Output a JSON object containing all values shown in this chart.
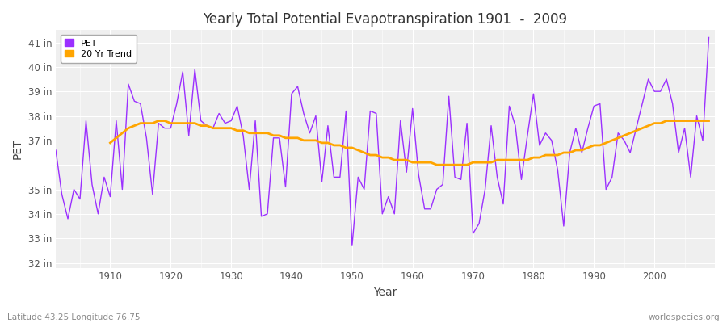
{
  "title": "Yearly Total Potential Evapotranspiration 1901  -  2009",
  "xlabel": "Year",
  "ylabel": "PET",
  "subtitle_left": "Latitude 43.25 Longitude 76.75",
  "subtitle_right": "worldspecies.org",
  "ylim": [
    31.8,
    41.5
  ],
  "yticks": [
    32,
    33,
    34,
    35,
    36,
    37,
    38,
    39,
    40,
    41
  ],
  "ytick_labels": [
    "32 in",
    "33 in",
    "34 in",
    "35 in",
    "",
    "37 in",
    "38 in",
    "39 in",
    "40 in",
    "41 in"
  ],
  "xlim": [
    1901,
    2010
  ],
  "xticks": [
    1910,
    1920,
    1930,
    1940,
    1950,
    1960,
    1970,
    1980,
    1990,
    2000
  ],
  "pet_color": "#9B30FF",
  "trend_color": "#FFA500",
  "background_color": "#FFFFFF",
  "plot_bg_color": "#EFEFEF",
  "pet_linewidth": 1.0,
  "trend_linewidth": 2.0,
  "years": [
    1901,
    1902,
    1903,
    1904,
    1905,
    1906,
    1907,
    1908,
    1909,
    1910,
    1911,
    1912,
    1913,
    1914,
    1915,
    1916,
    1917,
    1918,
    1919,
    1920,
    1921,
    1922,
    1923,
    1924,
    1925,
    1926,
    1927,
    1928,
    1929,
    1930,
    1931,
    1932,
    1933,
    1934,
    1935,
    1936,
    1937,
    1938,
    1939,
    1940,
    1941,
    1942,
    1943,
    1944,
    1945,
    1946,
    1947,
    1948,
    1949,
    1950,
    1951,
    1952,
    1953,
    1954,
    1955,
    1956,
    1957,
    1958,
    1959,
    1960,
    1961,
    1962,
    1963,
    1964,
    1965,
    1966,
    1967,
    1968,
    1969,
    1970,
    1971,
    1972,
    1973,
    1974,
    1975,
    1976,
    1977,
    1978,
    1979,
    1980,
    1981,
    1982,
    1983,
    1984,
    1985,
    1986,
    1987,
    1988,
    1989,
    1990,
    1991,
    1992,
    1993,
    1994,
    1995,
    1996,
    1997,
    1998,
    1999,
    2000,
    2001,
    2002,
    2003,
    2004,
    2005,
    2006,
    2007,
    2008,
    2009
  ],
  "pet_values": [
    36.6,
    34.8,
    33.8,
    35.0,
    34.6,
    37.8,
    35.2,
    34.0,
    35.5,
    34.7,
    37.8,
    35.0,
    39.3,
    38.6,
    38.5,
    37.1,
    34.8,
    37.7,
    37.5,
    37.5,
    38.5,
    39.8,
    37.2,
    39.9,
    37.8,
    37.6,
    37.5,
    38.1,
    37.7,
    37.8,
    38.4,
    37.2,
    35.0,
    37.8,
    33.9,
    34.0,
    37.1,
    37.1,
    35.1,
    38.9,
    39.2,
    38.1,
    37.3,
    38.0,
    35.3,
    37.6,
    35.5,
    35.5,
    38.2,
    32.7,
    35.5,
    35.0,
    38.2,
    38.1,
    34.0,
    34.7,
    34.0,
    37.8,
    35.7,
    38.3,
    35.6,
    34.2,
    34.2,
    35.0,
    35.2,
    38.8,
    35.5,
    35.4,
    37.7,
    33.2,
    33.6,
    35.0,
    37.6,
    35.5,
    34.4,
    38.4,
    37.6,
    35.4,
    37.2,
    38.9,
    36.8,
    37.3,
    37.0,
    35.8,
    33.5,
    36.5,
    37.5,
    36.5,
    37.5,
    38.4,
    38.5,
    35.0,
    35.5,
    37.3,
    37.0,
    36.5,
    37.5,
    38.5,
    39.5,
    39.0,
    39.0,
    39.5,
    38.5,
    36.5,
    37.5,
    35.5,
    38.0,
    37.0,
    41.2
  ],
  "trend_years": [
    1910,
    1911,
    1912,
    1913,
    1914,
    1915,
    1916,
    1917,
    1918,
    1919,
    1920,
    1921,
    1922,
    1923,
    1924,
    1925,
    1926,
    1927,
    1928,
    1929,
    1930,
    1931,
    1932,
    1933,
    1934,
    1935,
    1936,
    1937,
    1938,
    1939,
    1940,
    1941,
    1942,
    1943,
    1944,
    1945,
    1946,
    1947,
    1948,
    1949,
    1950,
    1951,
    1952,
    1953,
    1954,
    1955,
    1956,
    1957,
    1958,
    1959,
    1960,
    1961,
    1962,
    1963,
    1964,
    1965,
    1966,
    1967,
    1968,
    1969,
    1970,
    1971,
    1972,
    1973,
    1974,
    1975,
    1976,
    1977,
    1978,
    1979,
    1980,
    1981,
    1982,
    1983,
    1984,
    1985,
    1986,
    1987,
    1988,
    1989,
    1990,
    1991,
    1992,
    1993,
    1994,
    1995,
    1996,
    1997,
    1998,
    1999,
    2000,
    2001,
    2002,
    2003,
    2004,
    2005,
    2006,
    2007,
    2008,
    2009
  ],
  "trend_values": [
    36.9,
    37.1,
    37.3,
    37.5,
    37.6,
    37.7,
    37.7,
    37.7,
    37.8,
    37.8,
    37.7,
    37.7,
    37.7,
    37.7,
    37.7,
    37.6,
    37.6,
    37.5,
    37.5,
    37.5,
    37.5,
    37.4,
    37.4,
    37.3,
    37.3,
    37.3,
    37.3,
    37.2,
    37.2,
    37.1,
    37.1,
    37.1,
    37.0,
    37.0,
    37.0,
    36.9,
    36.9,
    36.8,
    36.8,
    36.7,
    36.7,
    36.6,
    36.5,
    36.4,
    36.4,
    36.3,
    36.3,
    36.2,
    36.2,
    36.2,
    36.1,
    36.1,
    36.1,
    36.1,
    36.0,
    36.0,
    36.0,
    36.0,
    36.0,
    36.0,
    36.1,
    36.1,
    36.1,
    36.1,
    36.2,
    36.2,
    36.2,
    36.2,
    36.2,
    36.2,
    36.3,
    36.3,
    36.4,
    36.4,
    36.4,
    36.5,
    36.5,
    36.6,
    36.6,
    36.7,
    36.8,
    36.8,
    36.9,
    37.0,
    37.1,
    37.2,
    37.3,
    37.4,
    37.5,
    37.6,
    37.7,
    37.7,
    37.8,
    37.8,
    37.8,
    37.8,
    37.8,
    37.8,
    37.8,
    37.8
  ]
}
